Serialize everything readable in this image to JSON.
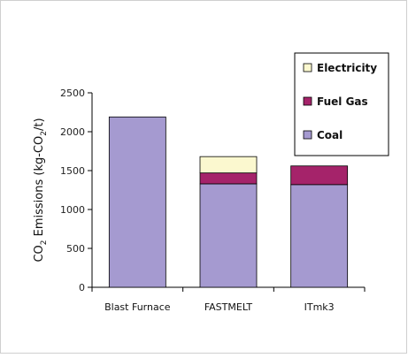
{
  "chart_data": {
    "type": "bar",
    "stacked": true,
    "categories": [
      "Blast Furnace",
      "FASTMELT",
      "ITmk3"
    ],
    "series": [
      {
        "name": "Coal",
        "color": "#a59ad0",
        "values": [
          2190,
          1330,
          1320
        ]
      },
      {
        "name": "Fuel Gas",
        "color": "#a5236a",
        "values": [
          0,
          140,
          240
        ]
      },
      {
        "name": "Electricity",
        "color": "#fbf8cf",
        "values": [
          0,
          210,
          0
        ]
      }
    ],
    "legend_order": [
      "Electricity",
      "Fuel Gas",
      "Coal"
    ],
    "legend_position": "top-right",
    "ylabel_main": "CO",
    "ylabel_sub": "2",
    "ylabel_rest": " Emissions (kg-CO",
    "ylabel_sub2": "2",
    "ylabel_end": "/t)",
    "ylim": [
      0,
      2500
    ],
    "yticks": [
      0,
      500,
      1000,
      1500,
      2000,
      2500
    ],
    "grid": false
  }
}
